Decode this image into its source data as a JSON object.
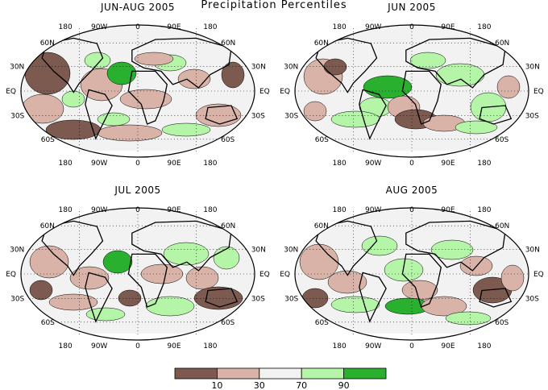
{
  "title": "Precipitation Percentiles",
  "colors": {
    "very_dry": "#7d5a50",
    "dry": "#d9b3a8",
    "normal": "#f2f2f2",
    "wet": "#b4f5a8",
    "very_wet": "#29b02e"
  },
  "panels": [
    {
      "title": "JUN-AUG 2005",
      "lon_labels": [
        "180",
        "90W",
        "0",
        "90E",
        "180"
      ],
      "lat_labels": [
        "60N",
        "30N",
        "EQ",
        "30S",
        "60S"
      ]
    },
    {
      "title": "JUN 2005",
      "lon_labels": [
        "180",
        "90W",
        "0",
        "90E",
        "180"
      ],
      "lat_labels": [
        "60N",
        "30N",
        "EQ",
        "30S",
        "60S"
      ]
    },
    {
      "title": "JUL 2005",
      "lon_labels": [
        "180",
        "90W",
        "0",
        "90E",
        "180"
      ],
      "lat_labels": [
        "60N",
        "30N",
        "EQ",
        "30S",
        "60S"
      ]
    },
    {
      "title": "AUG 2005",
      "lon_labels": [
        "180",
        "90W",
        "0",
        "90E",
        "180"
      ],
      "lat_labels": [
        "60N",
        "30N",
        "EQ",
        "30S",
        "60S"
      ]
    }
  ],
  "colorbar": {
    "labels": [
      "10",
      "30",
      "70",
      "90"
    ]
  }
}
